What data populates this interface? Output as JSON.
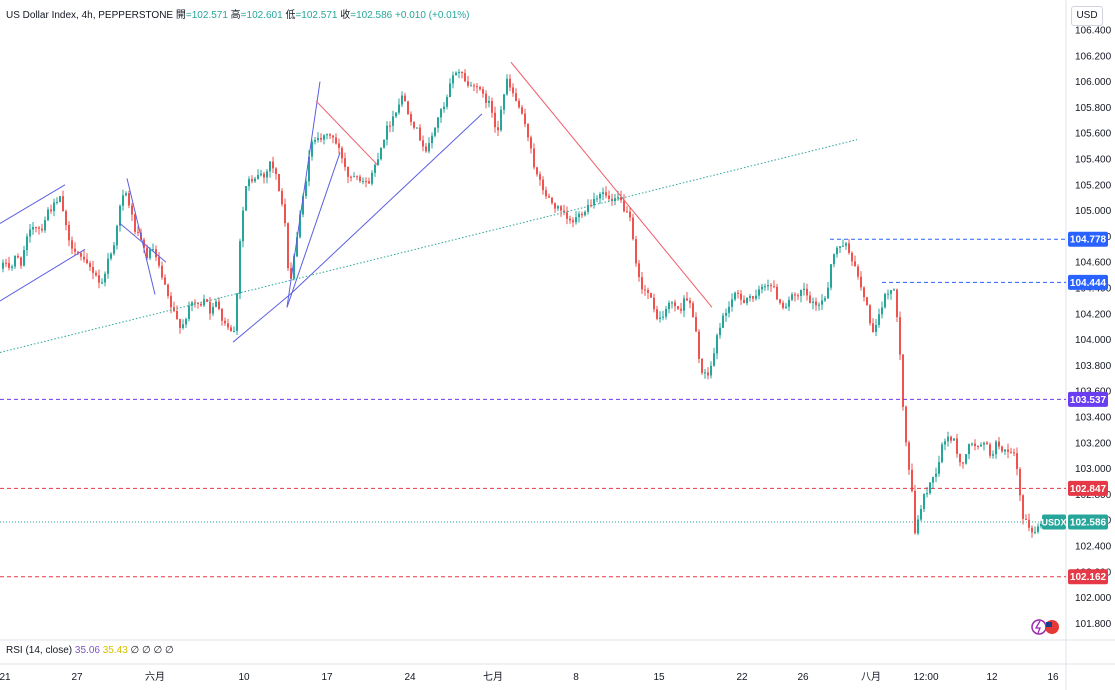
{
  "legend": {
    "symbol": "US Dollar Index, 4h, PEPPERSTONE",
    "open_label": "開",
    "open": "=102.571",
    "high_label": "高",
    "high": "=102.601",
    "low_label": "低",
    "low": "=102.571",
    "close_label": "收",
    "close": "=102.586",
    "change": "+0.010 (+0.01%)"
  },
  "currency_button": "USD",
  "rsi": {
    "label": "RSI (14, close)",
    "value1": "35.06",
    "value2": "35.43",
    "extra": "∅ ∅ ∅ ∅"
  },
  "colors": {
    "up": "#26a69a",
    "down": "#ef5350",
    "trend_blue": "#5b5fe0",
    "trend_red": "#f05d6a",
    "dotted_green": "#26a69a",
    "label_blue": "#2962ff",
    "label_purple": "#6a3df0",
    "label_red": "#e53947",
    "label_green": "#26a69a"
  },
  "chart_data": {
    "type": "candlestick",
    "title": "US Dollar Index, 4h, PEPPERSTONE",
    "y_ticks": [
      "106.400",
      "106.200",
      "106.000",
      "105.800",
      "105.600",
      "105.400",
      "105.200",
      "105.000",
      "104.800",
      "104.600",
      "104.400",
      "104.200",
      "104.000",
      "103.800",
      "103.600",
      "103.400",
      "103.200",
      "103.000",
      "102.800",
      "102.600",
      "102.400",
      "102.200",
      "102.000",
      "101.800"
    ],
    "x_ticks": [
      "21",
      "27",
      "六月",
      "10",
      "17",
      "24",
      "七月",
      "8",
      "15",
      "22",
      "26",
      "八月",
      "12:00",
      "12",
      "16"
    ],
    "ylim": [
      101.8,
      106.4
    ],
    "price_labels": [
      {
        "value": 104.778,
        "text": "104.778",
        "style": "blue"
      },
      {
        "value": 104.444,
        "text": "104.444",
        "style": "blue"
      },
      {
        "value": 103.537,
        "text": "103.537",
        "style": "purple"
      },
      {
        "value": 102.847,
        "text": "102.847",
        "style": "red"
      },
      {
        "value": 102.586,
        "text": "102.586",
        "style": "green",
        "tag": "USDX"
      },
      {
        "value": 102.162,
        "text": "102.162",
        "style": "red"
      }
    ],
    "price_path": [
      [
        0,
        104.55
      ],
      [
        5,
        104.6
      ],
      [
        10,
        104.55
      ],
      [
        15,
        104.65
      ],
      [
        20,
        104.6
      ],
      [
        27,
        104.8
      ],
      [
        33,
        104.9
      ],
      [
        40,
        104.85
      ],
      [
        47,
        105.0
      ],
      [
        55,
        105.05
      ],
      [
        60,
        105.1
      ],
      [
        64,
        104.9
      ],
      [
        68,
        104.75
      ],
      [
        75,
        104.7
      ],
      [
        82,
        104.6
      ],
      [
        90,
        104.55
      ],
      [
        96,
        104.5
      ],
      [
        100,
        104.4
      ],
      [
        106,
        104.6
      ],
      [
        112,
        104.7
      ],
      [
        118,
        105.0
      ],
      [
        124,
        105.15
      ],
      [
        128,
        105.05
      ],
      [
        134,
        104.85
      ],
      [
        140,
        104.75
      ],
      [
        146,
        104.65
      ],
      [
        152,
        104.7
      ],
      [
        158,
        104.55
      ],
      [
        164,
        104.4
      ],
      [
        170,
        104.25
      ],
      [
        176,
        104.15
      ],
      [
        181,
        104.1
      ],
      [
        186,
        104.2
      ],
      [
        192,
        104.3
      ],
      [
        198,
        104.25
      ],
      [
        204,
        104.35
      ],
      [
        210,
        104.2
      ],
      [
        216,
        104.3
      ],
      [
        222,
        104.15
      ],
      [
        228,
        104.1
      ],
      [
        234,
        104.05
      ],
      [
        238,
        104.7
      ],
      [
        242,
        105.0
      ],
      [
        246,
        105.25
      ],
      [
        252,
        105.2
      ],
      [
        258,
        105.3
      ],
      [
        264,
        105.25
      ],
      [
        268,
        105.4
      ],
      [
        274,
        105.3
      ],
      [
        280,
        105.1
      ],
      [
        284,
        104.9
      ],
      [
        288,
        104.4
      ],
      [
        292,
        104.6
      ],
      [
        298,
        104.9
      ],
      [
        304,
        105.2
      ],
      [
        310,
        105.5
      ],
      [
        316,
        105.6
      ],
      [
        322,
        105.55
      ],
      [
        330,
        105.6
      ],
      [
        336,
        105.5
      ],
      [
        342,
        105.4
      ],
      [
        348,
        105.25
      ],
      [
        354,
        105.3
      ],
      [
        360,
        105.25
      ],
      [
        366,
        105.2
      ],
      [
        372,
        105.3
      ],
      [
        378,
        105.45
      ],
      [
        384,
        105.6
      ],
      [
        390,
        105.7
      ],
      [
        396,
        105.8
      ],
      [
        402,
        105.9
      ],
      [
        408,
        105.75
      ],
      [
        414,
        105.65
      ],
      [
        420,
        105.55
      ],
      [
        426,
        105.45
      ],
      [
        432,
        105.6
      ],
      [
        438,
        105.75
      ],
      [
        444,
        105.8
      ],
      [
        450,
        106.0
      ],
      [
        456,
        106.1
      ],
      [
        462,
        106.05
      ],
      [
        468,
        105.95
      ],
      [
        474,
        106.0
      ],
      [
        480,
        105.9
      ],
      [
        486,
        105.85
      ],
      [
        490,
        105.8
      ],
      [
        496,
        105.6
      ],
      [
        500,
        105.8
      ],
      [
        506,
        106.0
      ],
      [
        512,
        105.9
      ],
      [
        518,
        105.8
      ],
      [
        524,
        105.65
      ],
      [
        530,
        105.5
      ],
      [
        534,
        105.3
      ],
      [
        540,
        105.2
      ],
      [
        546,
        105.1
      ],
      [
        552,
        105.05
      ],
      [
        558,
        105.0
      ],
      [
        564,
        104.95
      ],
      [
        570,
        104.9
      ],
      [
        576,
        104.95
      ],
      [
        582,
        105.0
      ],
      [
        588,
        105.05
      ],
      [
        594,
        105.1
      ],
      [
        600,
        105.15
      ],
      [
        606,
        105.1
      ],
      [
        612,
        105.05
      ],
      [
        618,
        105.1
      ],
      [
        624,
        105.0
      ],
      [
        630,
        104.9
      ],
      [
        636,
        104.5
      ],
      [
        642,
        104.4
      ],
      [
        648,
        104.35
      ],
      [
        654,
        104.2
      ],
      [
        660,
        104.15
      ],
      [
        666,
        104.25
      ],
      [
        672,
        104.3
      ],
      [
        678,
        104.2
      ],
      [
        684,
        104.35
      ],
      [
        690,
        104.25
      ],
      [
        696,
        104.0
      ],
      [
        700,
        103.75
      ],
      [
        706,
        103.7
      ],
      [
        712,
        103.85
      ],
      [
        718,
        104.1
      ],
      [
        724,
        104.2
      ],
      [
        730,
        104.3
      ],
      [
        736,
        104.35
      ],
      [
        742,
        104.3
      ],
      [
        748,
        104.35
      ],
      [
        754,
        104.3
      ],
      [
        760,
        104.4
      ],
      [
        766,
        104.45
      ],
      [
        772,
        104.4
      ],
      [
        778,
        104.3
      ],
      [
        784,
        104.25
      ],
      [
        790,
        104.35
      ],
      [
        796,
        104.3
      ],
      [
        802,
        104.4
      ],
      [
        808,
        104.3
      ],
      [
        814,
        104.25
      ],
      [
        820,
        104.3
      ],
      [
        826,
        104.35
      ],
      [
        830,
        104.6
      ],
      [
        836,
        104.7
      ],
      [
        842,
        104.75
      ],
      [
        848,
        104.7
      ],
      [
        854,
        104.55
      ],
      [
        860,
        104.4
      ],
      [
        866,
        104.25
      ],
      [
        872,
        104.05
      ],
      [
        876,
        104.1
      ],
      [
        882,
        104.3
      ],
      [
        888,
        104.4
      ],
      [
        894,
        104.35
      ],
      [
        898,
        104.05
      ],
      [
        902,
        103.5
      ],
      [
        906,
        103.1
      ],
      [
        910,
        102.9
      ],
      [
        914,
        102.5
      ],
      [
        918,
        102.65
      ],
      [
        924,
        102.8
      ],
      [
        930,
        102.9
      ],
      [
        936,
        103.0
      ],
      [
        942,
        103.2
      ],
      [
        948,
        103.25
      ],
      [
        954,
        103.2
      ],
      [
        960,
        103.0
      ],
      [
        966,
        103.15
      ],
      [
        972,
        103.2
      ],
      [
        978,
        103.15
      ],
      [
        984,
        103.2
      ],
      [
        990,
        103.1
      ],
      [
        996,
        103.2
      ],
      [
        1002,
        103.15
      ],
      [
        1008,
        103.1
      ],
      [
        1014,
        103.1
      ],
      [
        1018,
        102.85
      ],
      [
        1022,
        102.6
      ],
      [
        1028,
        102.55
      ],
      [
        1034,
        102.5
      ],
      [
        1040,
        102.586
      ]
    ],
    "trendlines": [
      {
        "color": "blue",
        "points": [
          [
            0,
            104.9
          ],
          [
            65,
            105.2
          ]
        ]
      },
      {
        "color": "blue",
        "points": [
          [
            0,
            104.3
          ],
          [
            85,
            104.7
          ]
        ]
      },
      {
        "color": "blue",
        "points": [
          [
            127,
            105.25
          ],
          [
            155,
            104.35
          ]
        ]
      },
      {
        "color": "blue",
        "points": [
          [
            120,
            104.9
          ],
          [
            166,
            104.6
          ]
        ]
      },
      {
        "color": "blue",
        "points": [
          [
            287,
            104.25
          ],
          [
            320,
            106.0
          ]
        ]
      },
      {
        "color": "blue",
        "points": [
          [
            287,
            104.25
          ],
          [
            340,
            105.45
          ]
        ]
      },
      {
        "color": "blue",
        "points": [
          [
            233,
            103.98
          ],
          [
            290,
            104.35
          ]
        ]
      },
      {
        "color": "blue",
        "points": [
          [
            290,
            104.35
          ],
          [
            482,
            105.75
          ]
        ]
      },
      {
        "color": "red",
        "points": [
          [
            316,
            105.85
          ],
          [
            378,
            105.35
          ]
        ]
      },
      {
        "color": "red",
        "points": [
          [
            511,
            106.15
          ],
          [
            712,
            104.25
          ]
        ]
      },
      {
        "color": "green_dotted",
        "points": [
          [
            0,
            103.9
          ],
          [
            857,
            105.55
          ]
        ]
      }
    ]
  }
}
